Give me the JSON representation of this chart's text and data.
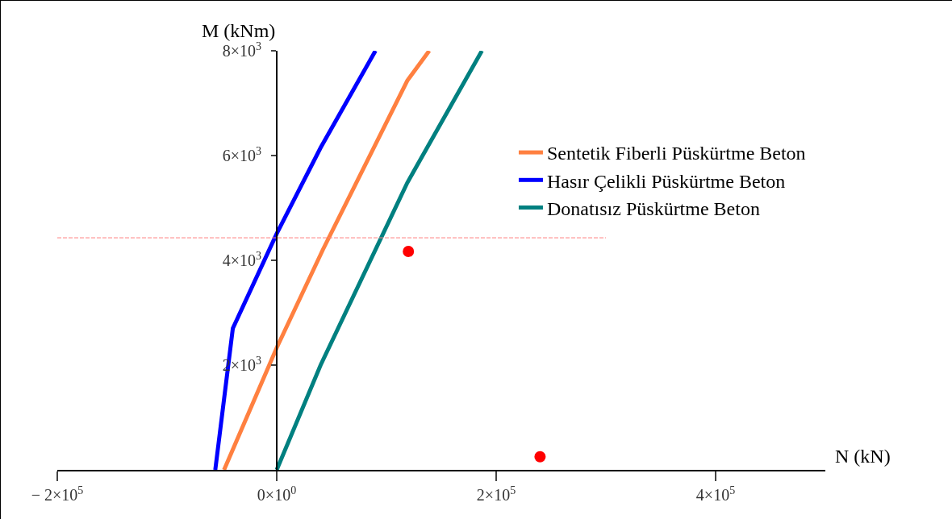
{
  "chart_data": {
    "type": "line",
    "xlabel": "N (kN)",
    "ylabel": "M (kNm)",
    "xlim": [
      -200000,
      500000
    ],
    "ylim": [
      0,
      8000
    ],
    "xticks": [
      {
        "value": -200000,
        "label": "− 2×10$^{5}$"
      },
      {
        "value": 0,
        "label": "0×10$^{0}$"
      },
      {
        "value": 200000,
        "label": "2×10$^{5}$"
      },
      {
        "value": 400000,
        "label": "4×10$^{5}$"
      }
    ],
    "yticks": [
      {
        "value": 2000,
        "label": "2×10$^{3}$"
      },
      {
        "value": 4000,
        "label": "4×10$^{3}$"
      },
      {
        "value": 6000,
        "label": "6×10$^{3}$"
      },
      {
        "value": 8000,
        "label": "8×10$^{3}$"
      }
    ],
    "grid": false,
    "legend": "top right",
    "marker": "none",
    "line_style": "solid",
    "series": [
      {
        "name": "Sentetik Fiberli Püskürtme Beton",
        "color": "#ff8040",
        "x": [
          -48000,
          0,
          42000,
          119000,
          139000
        ],
        "values": [
          0,
          2330,
          4200,
          7430,
          8000
        ]
      },
      {
        "name": "Hasır Çelikli Püskürtme Beton",
        "color": "#0000ff",
        "x": [
          -56000,
          -40000,
          0,
          40000,
          90000
        ],
        "values": [
          0,
          2700,
          4510,
          6150,
          8000
        ]
      },
      {
        "name": "Donatısız Püskürtme Beton",
        "color": "#008080",
        "x": [
          0,
          40000,
          119000,
          187000
        ],
        "values": [
          0,
          2000,
          5480,
          8000
        ]
      },
      {
        "type": "scatter",
        "marker": "circle",
        "color": "#ff0000",
        "x": [
          120000,
          240000
        ],
        "values": [
          4170,
          250
        ]
      },
      {
        "type": "line",
        "line_style": "dashed",
        "color": "#ff8080",
        "x": [
          -200000,
          300000
        ],
        "values": [
          4430,
          4430
        ]
      }
    ]
  }
}
